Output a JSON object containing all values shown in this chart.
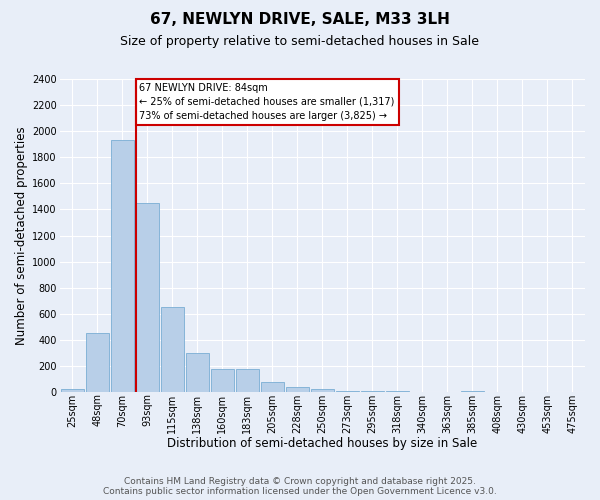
{
  "title": "67, NEWLYN DRIVE, SALE, M33 3LH",
  "subtitle": "Size of property relative to semi-detached houses in Sale",
  "xlabel": "Distribution of semi-detached houses by size in Sale",
  "ylabel": "Number of semi-detached properties",
  "footer_line1": "Contains HM Land Registry data © Crown copyright and database right 2025.",
  "footer_line2": "Contains public sector information licensed under the Open Government Licence v3.0.",
  "bins": [
    "25sqm",
    "48sqm",
    "70sqm",
    "93sqm",
    "115sqm",
    "138sqm",
    "160sqm",
    "183sqm",
    "205sqm",
    "228sqm",
    "250sqm",
    "273sqm",
    "295sqm",
    "318sqm",
    "340sqm",
    "363sqm",
    "385sqm",
    "408sqm",
    "430sqm",
    "453sqm",
    "475sqm"
  ],
  "values": [
    20,
    450,
    1930,
    1450,
    650,
    300,
    175,
    175,
    80,
    40,
    20,
    10,
    10,
    10,
    0,
    0,
    10,
    0,
    0,
    0,
    0
  ],
  "bar_color": "#b8cfe8",
  "bar_edge_color": "#7aadd4",
  "vline_index": 3,
  "annotation_line1": "67 NEWLYN DRIVE: 84sqm",
  "annotation_line2": "← 25% of semi-detached houses are smaller (1,317)",
  "annotation_line3": "73% of semi-detached houses are larger (3,825) →",
  "annotation_box_facecolor": "#ffffff",
  "annotation_box_edgecolor": "#cc0000",
  "vline_color": "#cc0000",
  "ylim": [
    0,
    2400
  ],
  "yticks": [
    0,
    200,
    400,
    600,
    800,
    1000,
    1200,
    1400,
    1600,
    1800,
    2000,
    2200,
    2400
  ],
  "background_color": "#e8eef8",
  "grid_color": "#ffffff",
  "title_fontsize": 11,
  "subtitle_fontsize": 9,
  "axis_label_fontsize": 8.5,
  "tick_fontsize": 7,
  "footer_fontsize": 6.5,
  "annotation_fontsize": 7
}
